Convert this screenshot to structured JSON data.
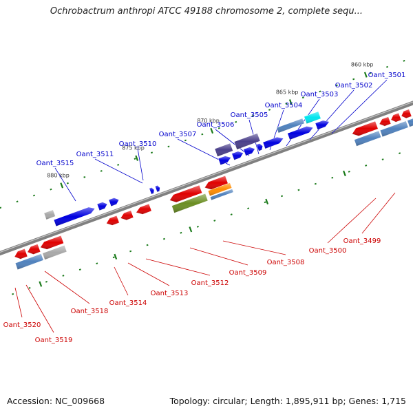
{
  "title": "Ochrobactrum anthropi ATCC 49188 chromosome 2, complete sequ...",
  "footer": {
    "accession": "Accession: NC_009668",
    "info": "Topology: circular; Length: 1,895,911 bp; Genes: 1,715"
  },
  "colors": {
    "backbone": "#808080",
    "red": "#e00000",
    "blue": "#0000e0",
    "purple": "#4a3f8a",
    "steel": "#4f81bd",
    "olive": "#6b8e23",
    "orange": "#ff8c00",
    "cyan": "#00e5ee",
    "gray": "#a8a8a8",
    "tick": "#1a7a1a",
    "top_label": "#0000cc",
    "bottom_label": "#cc0000"
  },
  "scale": {
    "ticks": [
      "880 kbp",
      "875 kbp",
      "870 kbp",
      "865 kbp",
      "860 kbp"
    ]
  },
  "labels_top": [
    "Oant_3515",
    "Oant_3511",
    "Oant_3510",
    "Oant_3507",
    "Oant_3506",
    "Oant_3505",
    "Oant_3504",
    "Oant_3503",
    "Oant_3502",
    "Oant_3501"
  ],
  "labels_bottom": [
    "Oant_3520",
    "Oant_3519",
    "Oant_3518",
    "Oant_3514",
    "Oant_3513",
    "Oant_3512",
    "Oant_3509",
    "Oant_3508",
    "Oant_3500",
    "Oant_3499"
  ]
}
